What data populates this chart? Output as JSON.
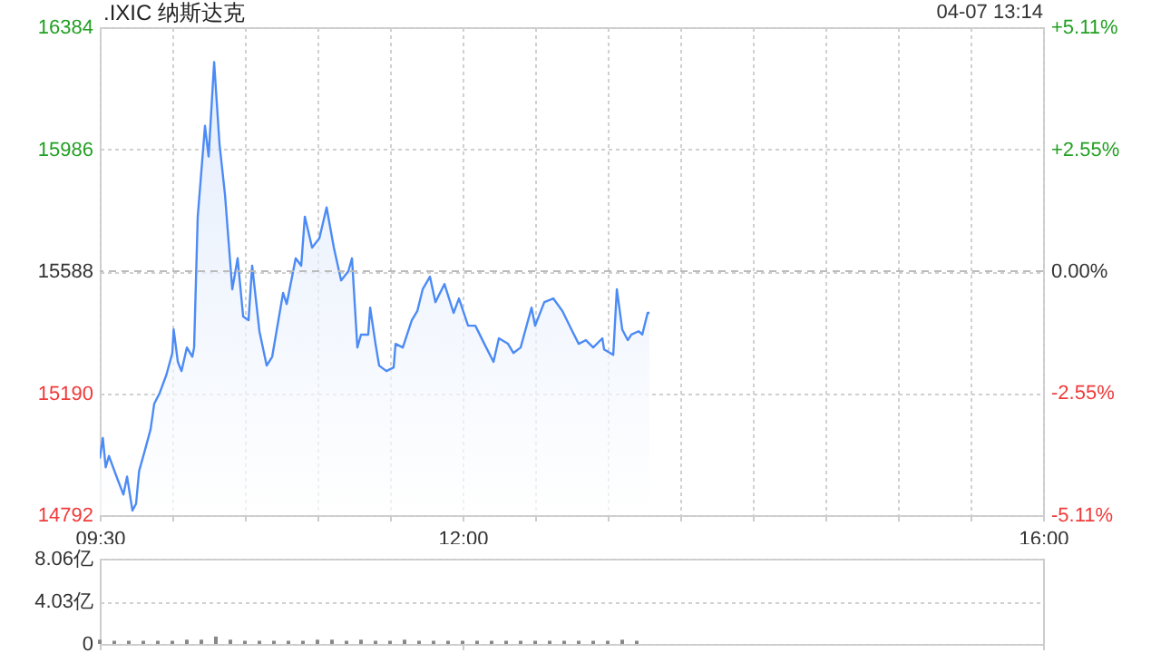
{
  "chart_data": [
    {
      "type": "area",
      "title": ".IXIC 纳斯达克",
      "annotations": [
        "04-07 13:14"
      ],
      "x": [
        9.5,
        9.521,
        9.541,
        9.563,
        9.625,
        9.663,
        9.688,
        9.725,
        9.75,
        9.771,
        9.813,
        9.85,
        9.875,
        9.913,
        9.959,
        10.0,
        10.009,
        10.038,
        10.063,
        10.1,
        10.138,
        10.15,
        10.175,
        10.225,
        10.25,
        10.288,
        10.325,
        10.363,
        10.413,
        10.45,
        10.488,
        10.525,
        10.55,
        10.6,
        10.65,
        10.688,
        10.763,
        10.788,
        10.85,
        10.888,
        10.913,
        10.963,
        11.013,
        11.063,
        11.113,
        11.163,
        11.213,
        11.238,
        11.275,
        11.3,
        11.35,
        11.363,
        11.4,
        11.425,
        11.475,
        11.525,
        11.538,
        11.588,
        11.65,
        11.688,
        11.725,
        11.775,
        11.813,
        11.875,
        11.938,
        11.975,
        12.038,
        12.088,
        12.15,
        12.213,
        12.25,
        12.313,
        12.35,
        12.4,
        12.475,
        12.5,
        12.563,
        12.625,
        12.688,
        12.75,
        12.8,
        12.85,
        12.9,
        12.963,
        12.975,
        13.038,
        13.063,
        13.1,
        13.138,
        13.163,
        13.213,
        13.238,
        13.275,
        13.288
      ],
      "series": [
        {
          "color": "#4c8bf5",
          "values": [
            14977,
            15044,
            14948,
            14985,
            14906,
            14859,
            14918,
            14807,
            14829,
            14936,
            15007,
            15072,
            15155,
            15191,
            15250,
            15321,
            15398,
            15292,
            15262,
            15339,
            15309,
            15339,
            15766,
            16062,
            15962,
            16270,
            16003,
            15837,
            15529,
            15630,
            15440,
            15428,
            15606,
            15392,
            15280,
            15309,
            15517,
            15481,
            15630,
            15606,
            15766,
            15665,
            15695,
            15796,
            15665,
            15558,
            15588,
            15630,
            15339,
            15381,
            15381,
            15469,
            15351,
            15280,
            15262,
            15274,
            15351,
            15339,
            15428,
            15458,
            15529,
            15570,
            15487,
            15546,
            15452,
            15499,
            15410,
            15410,
            15351,
            15292,
            15369,
            15351,
            15321,
            15339,
            15469,
            15410,
            15487,
            15499,
            15458,
            15398,
            15351,
            15363,
            15339,
            15369,
            15333,
            15315,
            15529,
            15398,
            15363,
            15381,
            15392,
            15381,
            15452,
            15452
          ]
        }
      ],
      "xlim": [
        9.5,
        16
      ],
      "xticks": [
        {
          "value": 9.5,
          "label": "09:30"
        },
        {
          "value": 10,
          "label": null
        },
        {
          "value": 10.5,
          "label": null
        },
        {
          "value": 11,
          "label": null
        },
        {
          "value": 11.5,
          "label": null
        },
        {
          "value": 12,
          "label": "12:00"
        },
        {
          "value": 12.5,
          "label": null
        },
        {
          "value": 13,
          "label": null
        },
        {
          "value": 13.5,
          "label": null
        },
        {
          "value": 14,
          "label": null
        },
        {
          "value": 14.5,
          "label": null
        },
        {
          "value": 15,
          "label": null
        },
        {
          "value": 15.5,
          "label": null
        },
        {
          "value": 16,
          "label": "16:00"
        }
      ],
      "ylim": [
        14792,
        16384
      ],
      "yticks": [
        14792,
        15190,
        15588,
        15986,
        16384
      ],
      "y2lim": [
        -5.11,
        5.11
      ],
      "y2ticks": [
        {
          "value": -5.11,
          "label": "-5.11%"
        },
        {
          "value": -2.55,
          "label": "-2.55%"
        },
        {
          "value": 0,
          "label": "0.00%"
        },
        {
          "value": 2.55,
          "label": "+2.55%"
        },
        {
          "value": 5.11,
          "label": "+5.11%"
        }
      ],
      "ref_lines": [
        {
          "axis": "y2",
          "value": 0,
          "line_style": "dashed",
          "color": "#bbbbbb"
        }
      ],
      "grid": true
    },
    {
      "type": "bar",
      "color": "#888888",
      "x": [
        9.5,
        9.6,
        9.7,
        9.8,
        9.9,
        10.0,
        10.1,
        10.2,
        10.3,
        10.4,
        10.5,
        10.6,
        10.7,
        10.8,
        10.9,
        11.0,
        11.1,
        11.2,
        11.3,
        11.4,
        11.5,
        11.6,
        11.7,
        11.8,
        11.9,
        12.0,
        12.1,
        12.2,
        12.3,
        12.4,
        12.5,
        12.6,
        12.7,
        12.8,
        12.9,
        13.0,
        13.1,
        13.2
      ],
      "values": [
        0.4,
        0.3,
        0.3,
        0.3,
        0.3,
        0.3,
        0.4,
        0.4,
        0.7,
        0.4,
        0.3,
        0.3,
        0.3,
        0.3,
        0.3,
        0.4,
        0.4,
        0.3,
        0.4,
        0.3,
        0.3,
        0.4,
        0.3,
        0.3,
        0.3,
        0.3,
        0.3,
        0.3,
        0.3,
        0.3,
        0.3,
        0.3,
        0.3,
        0.3,
        0.3,
        0.3,
        0.4,
        0.3
      ],
      "xlim": [
        9.5,
        16
      ],
      "xticks": [
        {
          "value": 9.5,
          "label": null
        },
        {
          "value": 12,
          "label": null
        },
        {
          "value": 16,
          "label": null
        }
      ],
      "ylim": [
        0,
        8.06
      ],
      "yticks": [
        0,
        {
          "value": 4.03,
          "label": "4.03亿"
        },
        {
          "value": 8.06,
          "label": "8.06亿"
        }
      ],
      "tick_labels": "y",
      "grid": "y"
    }
  ]
}
